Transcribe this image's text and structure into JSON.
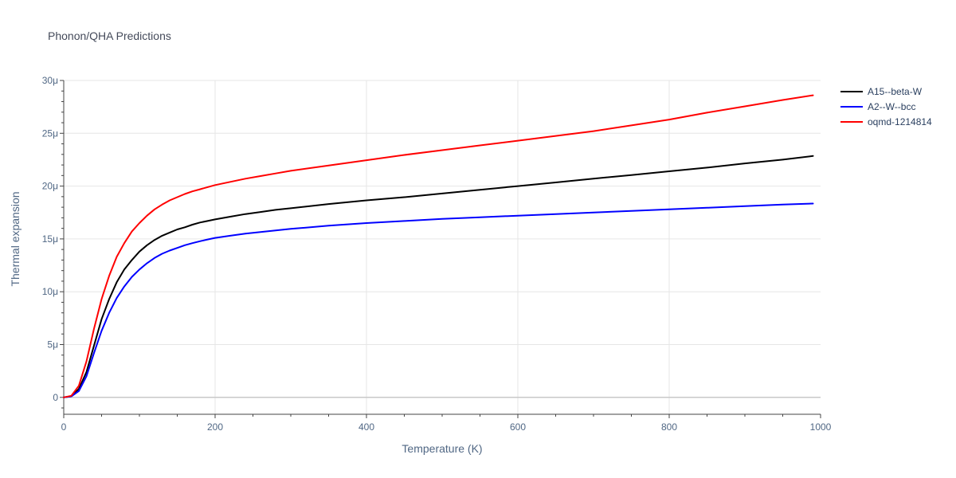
{
  "chart_data": {
    "type": "line",
    "title": "Phonon/QHA Predictions",
    "xlabel": "Temperature (K)",
    "ylabel": "Thermal expansion",
    "xlim": [
      0,
      1000
    ],
    "ylim": [
      -1.6,
      30
    ],
    "x_ticks": [
      0,
      200,
      400,
      600,
      800,
      1000
    ],
    "x_tick_labels": [
      "0",
      "200",
      "400",
      "600",
      "800",
      "1000"
    ],
    "y_ticks": [
      0,
      5,
      10,
      15,
      20,
      25,
      30
    ],
    "y_tick_labels": [
      "0",
      "5μ",
      "10μ",
      "15μ",
      "20μ",
      "25μ",
      "30μ"
    ],
    "y_unit": "μ",
    "grid": true,
    "legend_position": "top-right",
    "series": [
      {
        "name": "A15--beta-W",
        "color": "#000000",
        "x": [
          0,
          10,
          20,
          30,
          40,
          50,
          60,
          70,
          80,
          90,
          100,
          110,
          120,
          130,
          140,
          150,
          160,
          170,
          180,
          190,
          200,
          220,
          240,
          260,
          280,
          300,
          350,
          400,
          450,
          500,
          550,
          600,
          650,
          700,
          750,
          800,
          850,
          900,
          950,
          990
        ],
        "y": [
          0,
          0.1,
          0.8,
          2.4,
          4.9,
          7.4,
          9.3,
          10.9,
          12.1,
          13.0,
          13.8,
          14.4,
          14.9,
          15.3,
          15.6,
          15.9,
          16.1,
          16.35,
          16.55,
          16.7,
          16.85,
          17.1,
          17.35,
          17.55,
          17.75,
          17.9,
          18.3,
          18.65,
          18.95,
          19.3,
          19.65,
          20.0,
          20.35,
          20.7,
          21.05,
          21.4,
          21.75,
          22.15,
          22.5,
          22.85
        ]
      },
      {
        "name": "A2--W--bcc",
        "color": "#0000ff",
        "x": [
          0,
          10,
          20,
          30,
          40,
          50,
          60,
          70,
          80,
          90,
          100,
          110,
          120,
          130,
          140,
          150,
          160,
          170,
          180,
          190,
          200,
          220,
          240,
          260,
          280,
          300,
          350,
          400,
          450,
          500,
          550,
          600,
          650,
          700,
          750,
          800,
          850,
          900,
          950,
          990
        ],
        "y": [
          0,
          0.1,
          0.6,
          2.0,
          4.2,
          6.3,
          8.0,
          9.4,
          10.5,
          11.4,
          12.1,
          12.7,
          13.2,
          13.6,
          13.9,
          14.15,
          14.4,
          14.6,
          14.78,
          14.95,
          15.1,
          15.3,
          15.5,
          15.65,
          15.8,
          15.95,
          16.25,
          16.5,
          16.7,
          16.9,
          17.05,
          17.2,
          17.35,
          17.5,
          17.65,
          17.8,
          17.95,
          18.1,
          18.25,
          18.35
        ]
      },
      {
        "name": "oqmd-1214814",
        "color": "#ff0000",
        "x": [
          0,
          10,
          20,
          30,
          40,
          50,
          60,
          70,
          80,
          90,
          100,
          110,
          120,
          130,
          140,
          150,
          160,
          170,
          180,
          190,
          200,
          220,
          240,
          260,
          280,
          300,
          350,
          400,
          450,
          500,
          550,
          600,
          650,
          700,
          750,
          800,
          850,
          900,
          950,
          990
        ],
        "y": [
          0,
          0.15,
          1.1,
          3.4,
          6.5,
          9.3,
          11.5,
          13.3,
          14.6,
          15.7,
          16.5,
          17.2,
          17.8,
          18.25,
          18.65,
          18.95,
          19.25,
          19.5,
          19.7,
          19.9,
          20.1,
          20.4,
          20.7,
          20.95,
          21.2,
          21.45,
          21.95,
          22.45,
          22.95,
          23.4,
          23.85,
          24.3,
          24.75,
          25.2,
          25.75,
          26.3,
          26.95,
          27.55,
          28.15,
          28.6
        ]
      }
    ]
  }
}
